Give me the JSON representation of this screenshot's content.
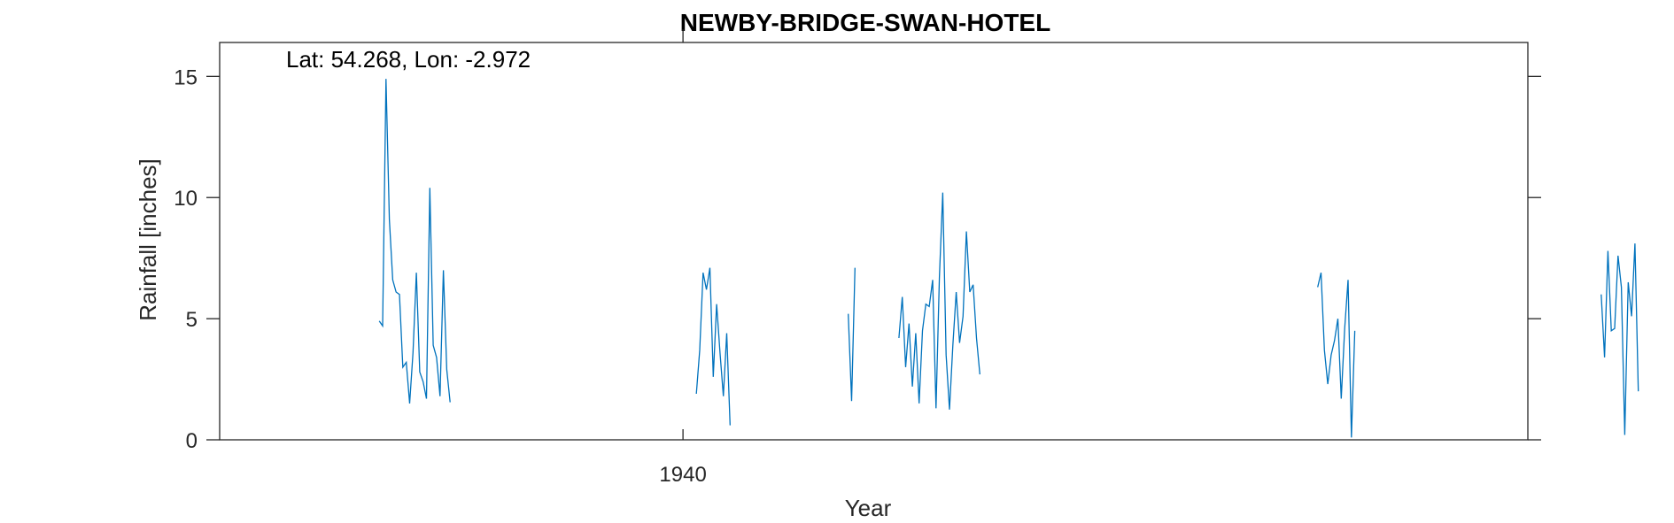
{
  "chart_data": {
    "type": "line",
    "title": "NEWBY-BRIDGE-SWAN-HOTEL",
    "xlabel": "Year",
    "ylabel": "Rainfall [inches]",
    "annotation": "Lat: 54.268, Lon: -2.972",
    "xlim": [
      1928.56,
      1960.86
    ],
    "ylim": [
      0,
      16.4
    ],
    "x_ticks": [
      1940
    ],
    "y_ticks": [
      0,
      5,
      10,
      15
    ],
    "grid": false,
    "series_color": "#0072BD",
    "segments": [
      {
        "x_start": 1932.5,
        "values": [
          4.9,
          4.7,
          14.9,
          9.1,
          6.6,
          6.1,
          6.0,
          3.0,
          3.2,
          1.5,
          3.6,
          6.9,
          2.8,
          2.4,
          1.7,
          10.4,
          3.9,
          3.4,
          1.8,
          7.0,
          2.9,
          1.55
        ]
      },
      {
        "x_start": 1940.33,
        "values": [
          1.9,
          3.7,
          6.9,
          6.2,
          7.1,
          2.6,
          5.6,
          3.6,
          1.8,
          4.4,
          0.6
        ]
      },
      {
        "x_start": 1944.08,
        "values": [
          5.2,
          1.6,
          7.1
        ]
      },
      {
        "x_start": 1945.33,
        "values": [
          4.2,
          5.9,
          3.0,
          4.8,
          2.2,
          4.4,
          1.5,
          4.5,
          5.6,
          5.5,
          6.6,
          1.3,
          6.7,
          10.2,
          3.5,
          1.25,
          3.9,
          6.1,
          4.0,
          5.1,
          8.6,
          6.1,
          6.4,
          4.2,
          2.7
        ]
      },
      {
        "x_start": 1955.67,
        "values": [
          6.3,
          6.9,
          3.7,
          2.3,
          3.5,
          4.1,
          5.0,
          1.7,
          4.6,
          6.6,
          0.1,
          4.5
        ]
      },
      {
        "x_start": 1962.67,
        "values": [
          6.0,
          3.4,
          7.8,
          4.5,
          4.6,
          7.6,
          6.3,
          0.2,
          6.5,
          5.1,
          8.1,
          2.0
        ]
      }
    ]
  }
}
